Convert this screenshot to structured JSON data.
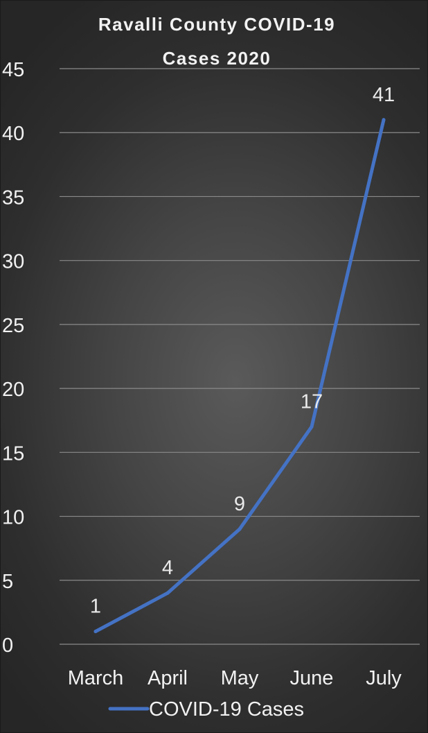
{
  "chart_data": {
    "type": "line",
    "title": "Ravalli County COVID-19 Cases 2020",
    "title_lines": [
      "Ravalli County COVID-19",
      "Cases 2020"
    ],
    "categories": [
      "March",
      "April",
      "May",
      "June",
      "July"
    ],
    "series": [
      {
        "name": "COVID-19 Cases",
        "values": [
          1,
          4,
          9,
          17,
          41
        ],
        "color": "#4472C4"
      }
    ],
    "data_labels": [
      "1",
      "4",
      "9",
      "17",
      "41"
    ],
    "y_ticks": [
      "0",
      "5",
      "10",
      "15",
      "20",
      "25",
      "30",
      "35",
      "40",
      "45"
    ],
    "ylim": [
      0,
      45
    ],
    "grid": true,
    "legend": "bottom",
    "background": "#3a3a3a",
    "gridline_color": "#8a8a8a",
    "text_color": "#f2f2f2"
  }
}
